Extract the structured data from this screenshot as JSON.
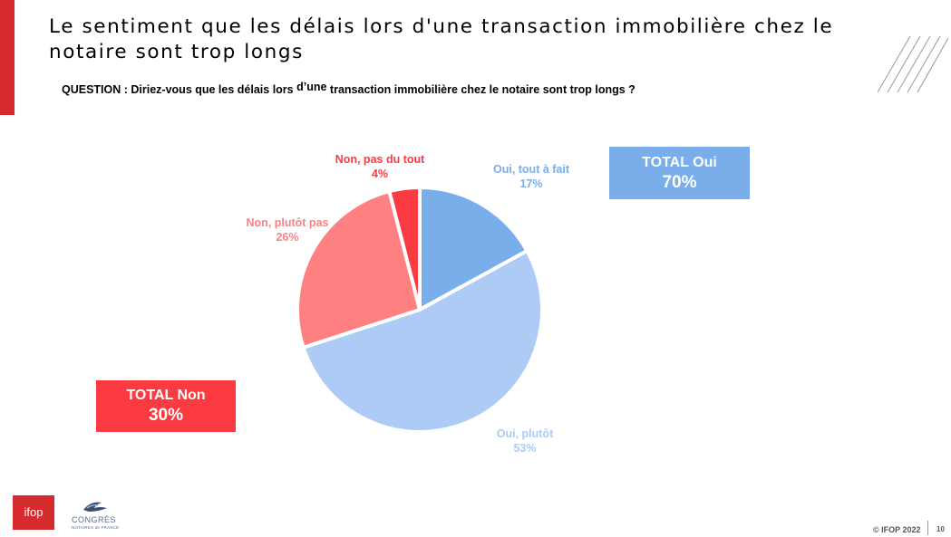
{
  "title": "Le sentiment que les délais lors d'une transaction immobilière chez le notaire sont trop longs",
  "question": {
    "prefix": "QUESTION : Diriez-vous que les délais lors ",
    "sup": "d’une",
    "suffix": " transaction immobilière chez le notaire sont trop longs ?"
  },
  "chart_data": {
    "type": "pie",
    "slices": [
      {
        "label": "Oui, tout à fait",
        "value": 17,
        "value_label": "17%",
        "color": "#7aaeea"
      },
      {
        "label": "Oui, plutôt",
        "value": 53,
        "value_label": "53%",
        "color": "#aecbf5"
      },
      {
        "label": "Non, plutôt pas",
        "value": 26,
        "value_label": "26%",
        "color": "#fe8080"
      },
      {
        "label": "Non, pas du tout",
        "value": 4,
        "value_label": "4%",
        "color": "#fb3a41"
      }
    ],
    "label_colors": [
      "#7aaeea",
      "#aecbf5",
      "#fe8080",
      "#fb3a41"
    ]
  },
  "totals": {
    "oui": {
      "label": "TOTAL Oui",
      "value": "70%",
      "color": "#7aaeea"
    },
    "non": {
      "label": "TOTAL Non",
      "value": "30%",
      "color": "#fb3a41"
    }
  },
  "footer": {
    "ifop_logo": "ifop",
    "congres_name": "CONGRÈS",
    "congres_sub": "NOTAIRES de FRANCE",
    "copyright": "© IFOP 2022",
    "page_number": "10"
  },
  "brand_color": "#d52b2f"
}
